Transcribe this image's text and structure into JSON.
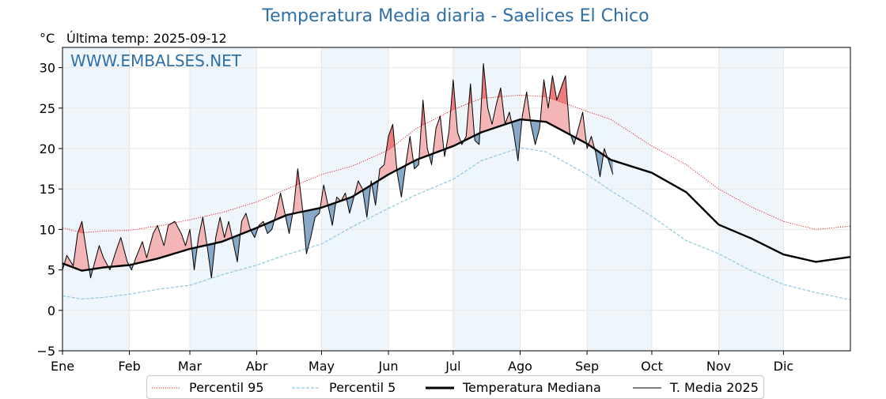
{
  "header": {
    "title": "Temperatura Media diaria - Saelices El Chico",
    "y_unit": "°C",
    "last_temp": "Última temp: 2025-09-12"
  },
  "watermark": "WWW.EMBALSES.NET",
  "legend": {
    "p95": "Percentil 95",
    "p5": "Percentil 5",
    "median": "Temperatura Mediana",
    "t2025": "T. Media 2025"
  },
  "colors": {
    "p95": "#e01818",
    "p5": "#8fc8e0",
    "median": "#000000",
    "t2025": "#000000",
    "above_fill": "#f3b5b5",
    "above_strong_fill": "#ef7c7c",
    "below_fill": "#88a8c8",
    "band": "#eef5fb",
    "title": "#2f6fa7"
  },
  "chart_data": {
    "type": "line",
    "xlabel": "",
    "ylabel": "°C",
    "ylim": [
      -5,
      32.5
    ],
    "xlim": [
      1,
      366
    ],
    "yticks": [
      -5,
      0,
      5,
      10,
      15,
      20,
      25,
      30
    ],
    "ytick_labels": [
      "−5",
      "0",
      "5",
      "10",
      "15",
      "20",
      "25",
      "30"
    ],
    "months": [
      {
        "label": "Ene",
        "start_day": 1
      },
      {
        "label": "Feb",
        "start_day": 32
      },
      {
        "label": "Mar",
        "start_day": 60
      },
      {
        "label": "Abr",
        "start_day": 91
      },
      {
        "label": "May",
        "start_day": 121
      },
      {
        "label": "Jun",
        "start_day": 152
      },
      {
        "label": "Jul",
        "start_day": 182
      },
      {
        "label": "Ago",
        "start_day": 213
      },
      {
        "label": "Sep",
        "start_day": 244
      },
      {
        "label": "Oct",
        "start_day": 274
      },
      {
        "label": "Nov",
        "start_day": 305
      },
      {
        "label": "Dic",
        "start_day": 335
      }
    ],
    "shaded_months": [
      "Ene",
      "Mar",
      "May",
      "Jul",
      "Sep",
      "Nov"
    ],
    "grid": true,
    "series": [
      {
        "name": "Percentil 95",
        "style": "dotted",
        "x": [
          1,
          10,
          20,
          32,
          45,
          60,
          75,
          91,
          105,
          121,
          135,
          152,
          165,
          182,
          195,
          213,
          225,
          244,
          255,
          274,
          290,
          305,
          320,
          335,
          350,
          366
        ],
        "y": [
          10.2,
          9.6,
          9.8,
          9.9,
          10.4,
          11.2,
          12.1,
          13.4,
          15.0,
          16.8,
          17.8,
          19.8,
          22.5,
          24.8,
          26.2,
          26.6,
          26.4,
          24.6,
          23.6,
          20.3,
          18.0,
          15.0,
          12.8,
          11.0,
          10.0,
          10.4
        ]
      },
      {
        "name": "Percentil 5",
        "style": "dashed",
        "x": [
          1,
          10,
          20,
          32,
          45,
          60,
          75,
          91,
          105,
          121,
          135,
          152,
          165,
          182,
          195,
          213,
          225,
          244,
          255,
          274,
          290,
          305,
          320,
          335,
          350,
          366
        ],
        "y": [
          1.8,
          1.4,
          1.6,
          2.0,
          2.6,
          3.1,
          4.4,
          5.6,
          6.9,
          8.2,
          10.3,
          12.6,
          14.3,
          16.2,
          18.5,
          20.1,
          19.6,
          16.8,
          14.8,
          11.6,
          8.6,
          7.0,
          4.9,
          3.2,
          2.2,
          1.3
        ]
      },
      {
        "name": "Temperatura Mediana",
        "style": "solid-bold",
        "x": [
          1,
          10,
          20,
          32,
          45,
          60,
          75,
          91,
          105,
          121,
          135,
          152,
          165,
          182,
          195,
          213,
          225,
          244,
          255,
          274,
          290,
          305,
          320,
          335,
          350,
          366
        ],
        "y": [
          5.8,
          4.9,
          5.3,
          5.6,
          6.4,
          7.6,
          8.5,
          10.2,
          11.8,
          12.7,
          14.0,
          16.8,
          18.6,
          20.3,
          22.0,
          23.6,
          23.3,
          20.6,
          18.6,
          17.0,
          14.6,
          10.6,
          8.9,
          6.9,
          6.0,
          6.6
        ]
      },
      {
        "name": "T. Media 2025",
        "style": "solid-thin",
        "x": [
          1,
          3,
          6,
          8,
          10,
          12,
          14,
          16,
          18,
          20,
          23,
          26,
          28,
          31,
          33,
          35,
          38,
          40,
          43,
          45,
          48,
          50,
          53,
          56,
          58,
          60,
          62,
          64,
          66,
          68,
          70,
          72,
          74,
          76,
          78,
          80,
          82,
          84,
          86,
          88,
          90,
          92,
          94,
          96,
          98,
          100,
          102,
          104,
          106,
          108,
          110,
          112,
          114,
          116,
          118,
          120,
          122,
          124,
          126,
          128,
          130,
          132,
          134,
          136,
          138,
          140,
          142,
          144,
          146,
          148,
          150,
          152,
          154,
          156,
          158,
          160,
          162,
          164,
          166,
          168,
          170,
          172,
          174,
          176,
          178,
          180,
          182,
          184,
          186,
          188,
          190,
          192,
          194,
          196,
          198,
          200,
          202,
          204,
          206,
          208,
          210,
          212,
          214,
          216,
          218,
          220,
          222,
          224,
          226,
          228,
          230,
          232,
          234,
          236,
          238,
          240,
          242,
          244,
          246,
          248,
          250,
          252,
          254,
          256
        ],
        "y": [
          5.0,
          6.8,
          5.5,
          9.5,
          11.0,
          7.5,
          4.0,
          6.0,
          8.0,
          6.5,
          5.0,
          7.5,
          9.0,
          6.0,
          5.0,
          6.5,
          8.5,
          6.5,
          9.5,
          10.5,
          8.0,
          10.5,
          11.0,
          9.5,
          8.0,
          10.0,
          5.0,
          9.0,
          11.5,
          8.0,
          4.0,
          9.0,
          11.5,
          9.0,
          11.0,
          8.5,
          6.0,
          11.0,
          12.0,
          10.0,
          9.0,
          10.5,
          11.0,
          9.5,
          10.0,
          12.0,
          14.5,
          12.0,
          9.5,
          12.5,
          17.5,
          13.0,
          7.0,
          9.0,
          11.5,
          12.0,
          15.5,
          13.0,
          10.5,
          14.0,
          13.5,
          14.5,
          12.0,
          14.0,
          16.0,
          15.0,
          11.5,
          16.0,
          13.0,
          17.5,
          18.0,
          21.5,
          23.0,
          17.0,
          14.0,
          18.0,
          21.5,
          17.5,
          18.0,
          26.0,
          20.0,
          18.0,
          22.5,
          24.0,
          19.0,
          22.0,
          28.5,
          22.0,
          20.5,
          21.5,
          28.0,
          21.0,
          20.5,
          30.5,
          25.0,
          23.0,
          25.5,
          27.5,
          23.0,
          24.5,
          22.0,
          18.5,
          24.0,
          27.0,
          23.0,
          20.5,
          22.5,
          28.5,
          25.0,
          29.0,
          26.0,
          27.5,
          29.0,
          22.0,
          20.5,
          22.5,
          24.5,
          20.0,
          21.5,
          19.5,
          16.5,
          20.0,
          18.5,
          16.8
        ]
      }
    ]
  }
}
